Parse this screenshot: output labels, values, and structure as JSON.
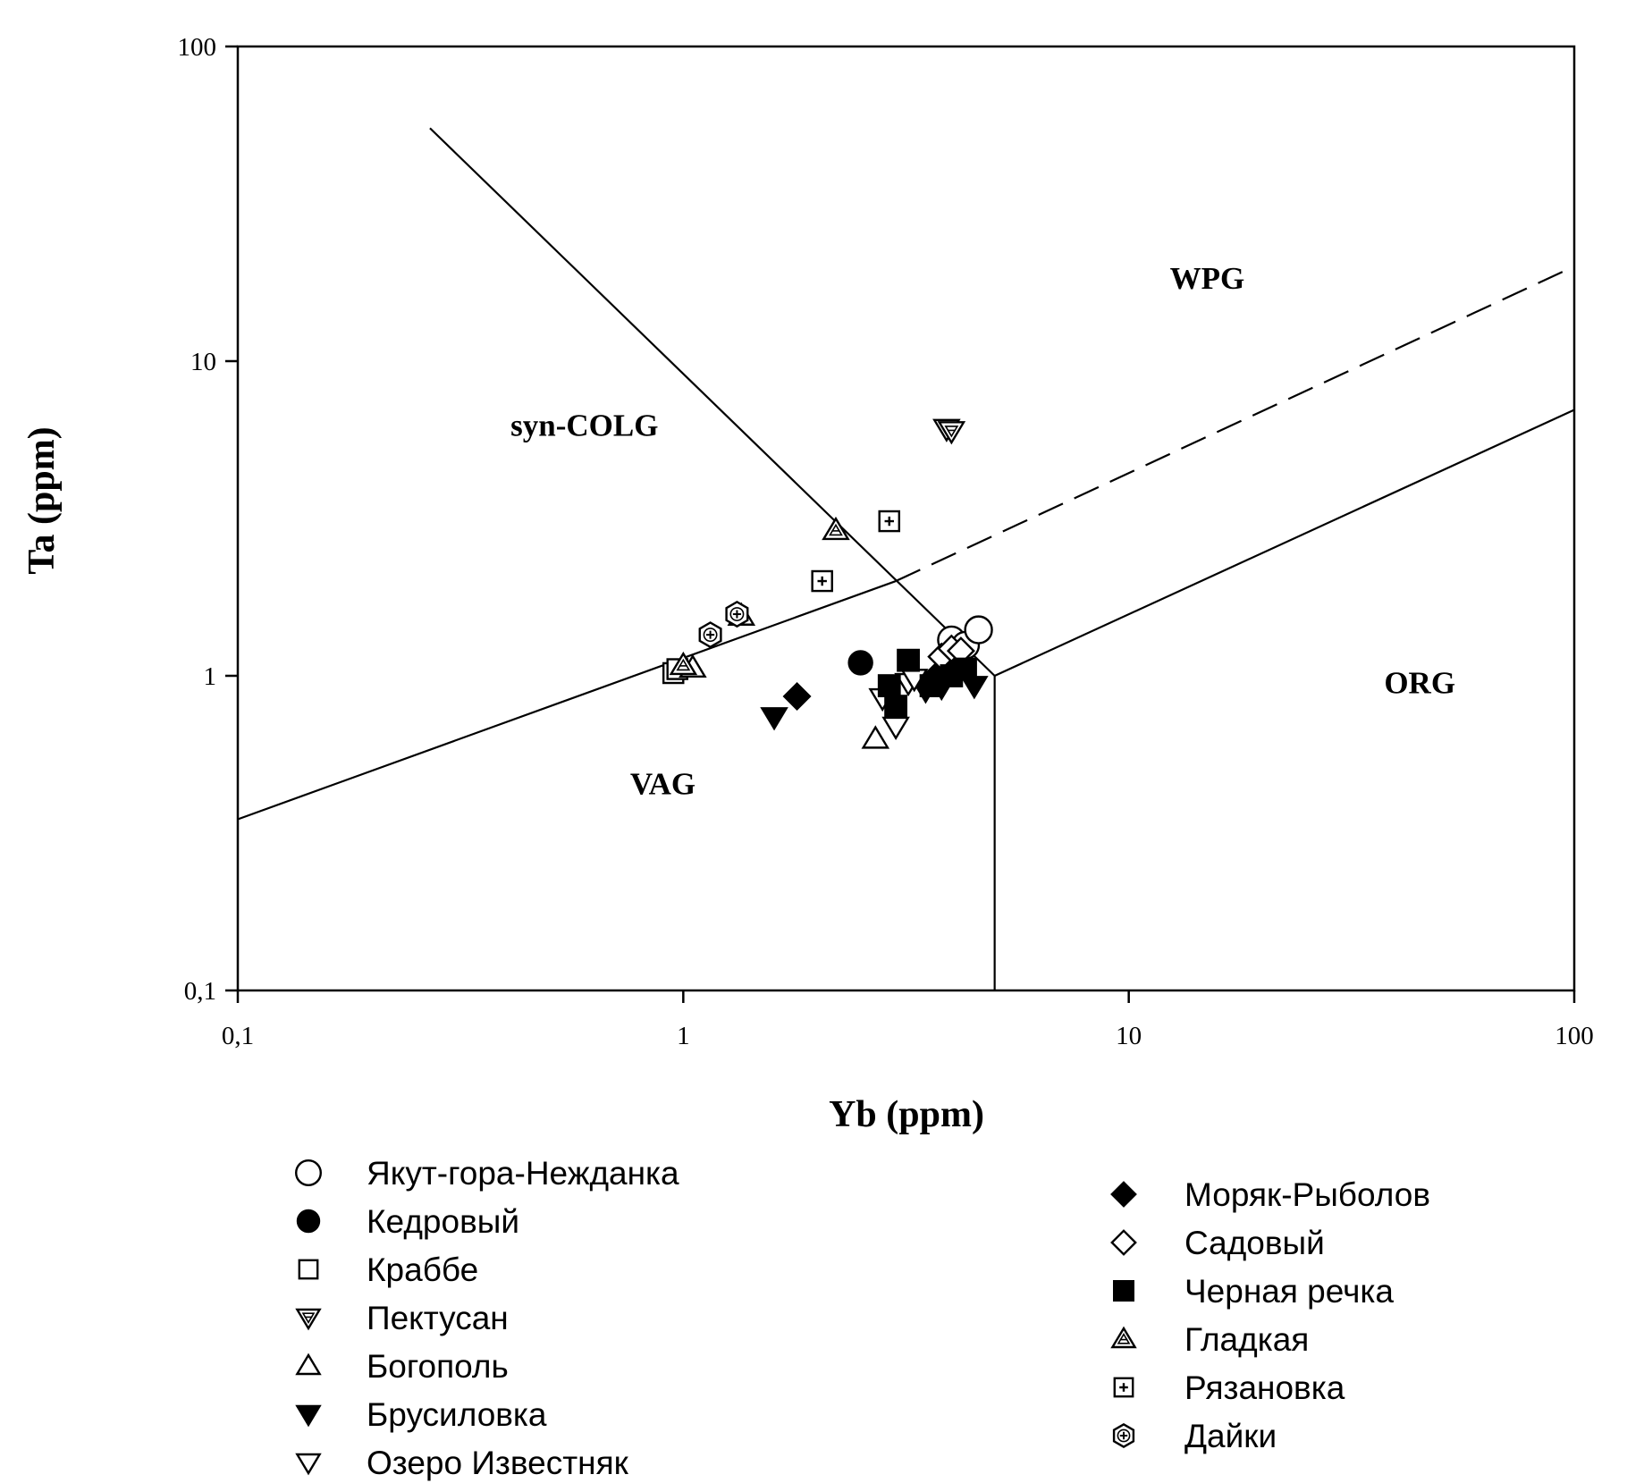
{
  "chart_data": {
    "type": "scatter",
    "title": "",
    "xlabel": "Yb (ppm)",
    "ylabel": "Ta (ppm)",
    "xscale": "log",
    "yscale": "log",
    "xlim": [
      0.1,
      100
    ],
    "ylim": [
      0.1,
      100
    ],
    "x_ticks": [
      "0,1",
      "1",
      "10",
      "100"
    ],
    "y_ticks": [
      "0,1",
      "1",
      "10",
      "100"
    ],
    "grid": false,
    "legend_position": "bottom",
    "regions": [
      {
        "label": "WPG",
        "x": 15,
        "y": 17
      },
      {
        "label": "syn-COLG",
        "x": 0.6,
        "y": 5.8
      },
      {
        "label": "VAG",
        "x": 0.9,
        "y": 0.42
      },
      {
        "label": "ORG",
        "x": 45,
        "y": 0.88
      }
    ],
    "boundaries": [
      {
        "style": "solid",
        "points": [
          [
            0.27,
            55
          ],
          [
            5,
            1
          ]
        ]
      },
      {
        "style": "solid",
        "points": [
          [
            0.1,
            0.35
          ],
          [
            3,
            2
          ]
        ]
      },
      {
        "style": "dashed",
        "points": [
          [
            3,
            2
          ],
          [
            100,
            20
          ]
        ]
      },
      {
        "style": "solid",
        "points": [
          [
            5,
            1
          ],
          [
            100,
            7
          ]
        ]
      },
      {
        "style": "solid",
        "points": [
          [
            5,
            0.1
          ],
          [
            5,
            1
          ]
        ]
      }
    ],
    "series": [
      {
        "name": "Якут-гора-Нежданка",
        "marker": "circle-open",
        "points": [
          [
            4.0,
            1.3
          ],
          [
            4.3,
            1.25
          ],
          [
            4.6,
            1.4
          ]
        ]
      },
      {
        "name": "Кедровый",
        "marker": "circle-filled",
        "points": [
          [
            2.5,
            1.1
          ]
        ]
      },
      {
        "name": "Краббе",
        "marker": "square-open",
        "points": [
          [
            0.95,
            1.02
          ],
          [
            0.97,
            1.05
          ]
        ]
      },
      {
        "name": "Пектусан",
        "marker": "triangle-down-hatched",
        "points": [
          [
            3.9,
            6.1
          ],
          [
            4.0,
            6.0
          ]
        ]
      },
      {
        "name": "Богополь",
        "marker": "triangle-up-open",
        "points": [
          [
            2.7,
            0.63
          ],
          [
            1.05,
            1.06
          ]
        ]
      },
      {
        "name": "Брусиловка",
        "marker": "triangle-down-filled",
        "points": [
          [
            1.6,
            0.74
          ],
          [
            3.5,
            0.9
          ],
          [
            4.5,
            0.93
          ],
          [
            3.8,
            0.92
          ]
        ]
      },
      {
        "name": "Озеро Известняк",
        "marker": "triangle-down-open",
        "points": [
          [
            3.0,
            0.69
          ],
          [
            2.8,
            0.85
          ],
          [
            3.2,
            0.95
          ],
          [
            3.3,
            0.98
          ]
        ]
      },
      {
        "name": "Моряк-Рыболов",
        "marker": "diamond-filled",
        "points": [
          [
            1.8,
            0.86
          ],
          [
            3.7,
            1.0
          ],
          [
            4.1,
            1.08
          ]
        ]
      },
      {
        "name": "Садовый",
        "marker": "diamond-open",
        "points": [
          [
            3.8,
            1.15
          ],
          [
            4.0,
            1.22
          ],
          [
            4.2,
            1.2
          ]
        ]
      },
      {
        "name": "Черная речка",
        "marker": "square-filled",
        "points": [
          [
            3.2,
            1.12
          ],
          [
            2.9,
            0.93
          ],
          [
            3.0,
            0.8
          ],
          [
            3.6,
            0.93
          ],
          [
            4.0,
            1.0
          ],
          [
            4.3,
            1.05
          ]
        ]
      },
      {
        "name": "Гладкая",
        "marker": "triangle-up-hatched",
        "points": [
          [
            2.2,
            2.9
          ],
          [
            1.0,
            1.08
          ],
          [
            1.35,
            1.55
          ]
        ]
      },
      {
        "name": "Рязановка",
        "marker": "square-cross",
        "points": [
          [
            2.9,
            3.1
          ],
          [
            2.05,
            2.0
          ]
        ]
      },
      {
        "name": "Дайки",
        "marker": "hexagon-cross",
        "points": [
          [
            1.15,
            1.35
          ],
          [
            1.32,
            1.57
          ]
        ]
      }
    ]
  }
}
